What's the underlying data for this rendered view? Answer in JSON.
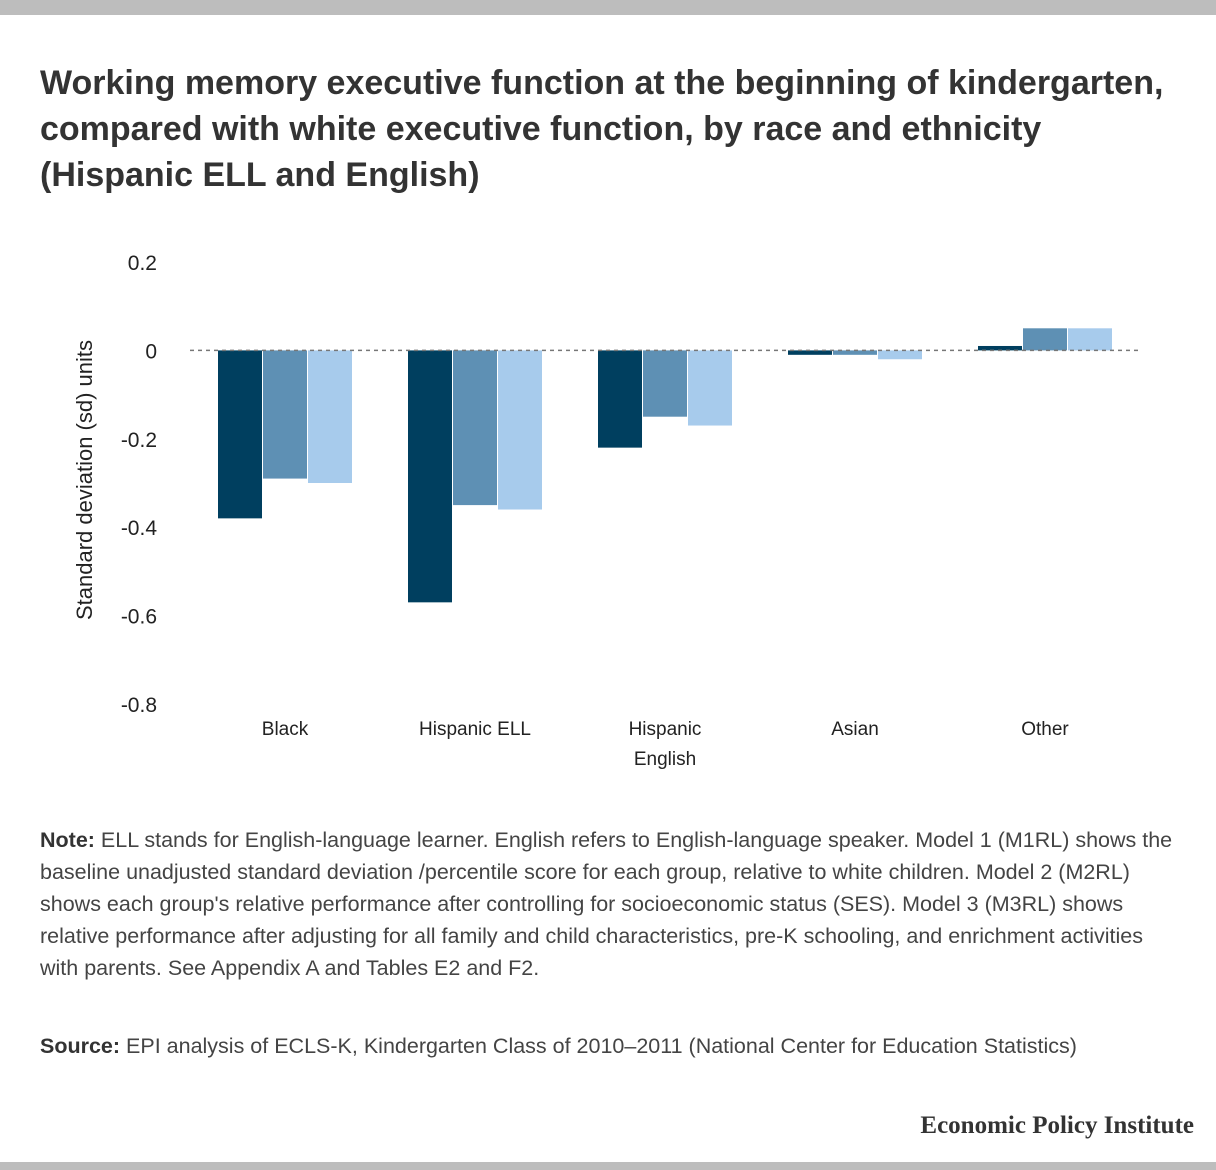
{
  "title": "Working memory executive function at the beginning of kindergarten, compared with white executive function, by race and ethnicity (Hispanic ELL and English)",
  "chart_data": {
    "type": "bar",
    "categories": [
      [
        "Black"
      ],
      [
        "Hispanic ELL"
      ],
      [
        "Hispanic",
        "English"
      ],
      [
        "Asian"
      ],
      [
        "Other"
      ]
    ],
    "series": [
      {
        "values": [
          -0.38,
          -0.57,
          -0.22,
          -0.01,
          0.01
        ]
      },
      {
        "values": [
          -0.29,
          -0.35,
          -0.15,
          -0.01,
          0.05
        ]
      },
      {
        "values": [
          -0.3,
          -0.36,
          -0.17,
          -0.02,
          0.05
        ]
      }
    ],
    "colors": [
      "#003f5f",
      "#5e90b4",
      "#a7cbec"
    ],
    "ylabel": "Standard deviation (sd) units",
    "ylim": [
      -0.8,
      0.2
    ],
    "yticks": [
      0.2,
      0,
      -0.2,
      -0.4,
      -0.6,
      -0.8
    ],
    "ytick_labels": [
      "0.2",
      "0",
      "-0.2",
      "-0.4",
      "-0.6",
      "-0.8"
    ],
    "zero_line": "dashed",
    "grid": false,
    "legend": "none"
  },
  "note": {
    "label": "Note:",
    "text": " ELL stands for English-language learner. English refers to English-language speaker. Model 1 (M1RL) shows the baseline unadjusted standard deviation /percentile score for each group, relative to white children. Model 2 (M2RL) shows each group's relative performance after controlling for socioeconomic status (SES). Model 3 (M3RL) shows relative performance after adjusting for all family and child characteristics, pre-K schooling, and enrichment activities with parents. See Appendix A and Tables E2 and F2."
  },
  "source": {
    "label": "Source:",
    "text": " EPI analysis of ECLS-K, Kindergarten Class of 2010–2011 (National Center for Education Statistics)"
  },
  "brand": "Economic Policy Institute"
}
